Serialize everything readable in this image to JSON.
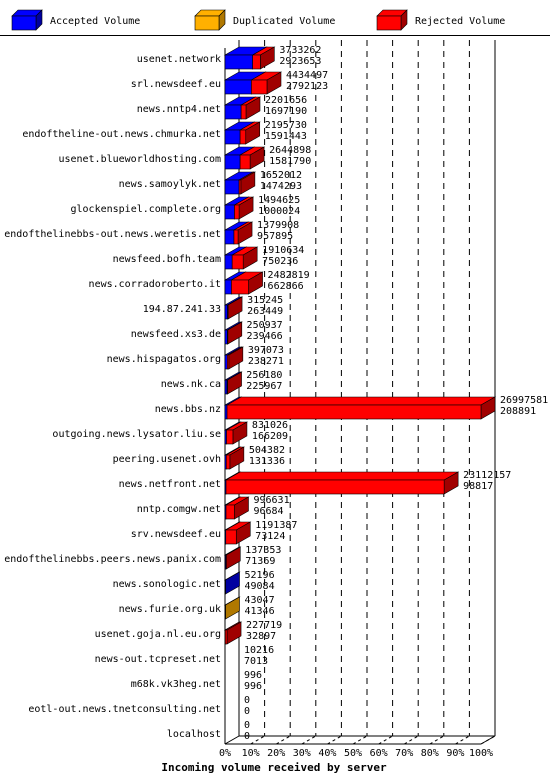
{
  "chart_data": {
    "type": "bar",
    "orientation": "horizontal",
    "style": "3d-stacked",
    "xlabel": "Incoming volume received by server",
    "xlim": [
      0,
      100
    ],
    "x_ticks": [
      "0%",
      "10%",
      "20%",
      "30%",
      "40%",
      "50%",
      "60%",
      "70%",
      "80%",
      "90%",
      "100%"
    ],
    "grid": true,
    "legend_position": "top",
    "legend": [
      {
        "name": "Accepted Volume",
        "color": "#0000ff"
      },
      {
        "name": "Duplicated Volume",
        "color": "#ffb000"
      },
      {
        "name": "Rejected Volume",
        "color": "#ff0000"
      }
    ],
    "categories": [
      "usenet.network",
      "srl.newsdeef.eu",
      "news.nntp4.net",
      "endoftheline-out.news.chmurka.net",
      "usenet.blueworldhosting.com",
      "news.samoylyk.net",
      "glockenspiel.complete.org",
      "endofthelinebbs-out.news.weretis.net",
      "newsfeed.bofh.team",
      "news.corradoroberto.it",
      "194.87.241.33",
      "newsfeed.xs3.de",
      "news.hispagatos.org",
      "news.nk.ca",
      "news.bbs.nz",
      "outgoing.news.lysator.liu.se",
      "peering.usenet.ovh",
      "news.netfront.net",
      "nntp.comgw.net",
      "srv.newsdeef.eu",
      "endofthelinebbs.peers.news.panix.com",
      "news.sonologic.net",
      "news.furie.org.uk",
      "usenet.goja.nl.eu.org",
      "news-out.tcpreset.net",
      "m68k.vk3heg.net",
      "eotl-out.news.tnetconsulting.net",
      "localhost"
    ],
    "total_labels": [
      "3733262",
      "4434497",
      "2201656",
      "2195730",
      "2644898",
      "1652012",
      "1494625",
      "1379908",
      "1910634",
      "2482819",
      "315245",
      "250937",
      "397073",
      "256180",
      "26997581",
      "831026",
      "504382",
      "23112157",
      "996631",
      "1191387",
      "137353",
      "52196",
      "43047",
      "227719",
      "10216",
      "996",
      "0",
      "0"
    ],
    "accepted_labels": [
      "2923653",
      "2792123",
      "1697190",
      "1591443",
      "1581790",
      "1474293",
      "1000024",
      "957895",
      "750236",
      "662866",
      "263449",
      "239466",
      "238271",
      "225967",
      "208891",
      "166209",
      "131336",
      "98817",
      "96684",
      "73124",
      "71369",
      "49084",
      "41346",
      "32897",
      "7013",
      "996",
      "0",
      "0"
    ],
    "series": [
      {
        "name": "Accepted Volume",
        "values": [
          10.8,
          10.3,
          6.3,
          5.9,
          5.9,
          5.5,
          3.7,
          3.5,
          2.8,
          2.5,
          1.0,
          0.9,
          0.9,
          0.8,
          0.8,
          0.6,
          0.5,
          0.4,
          0.4,
          0.3,
          0.3,
          0.2,
          0.0,
          0.1,
          0.0,
          0.0,
          0,
          0
        ]
      },
      {
        "name": "Duplicated Volume",
        "values": [
          0,
          0,
          0,
          0,
          0,
          0,
          0,
          0,
          0,
          0,
          0,
          0,
          0,
          0,
          0,
          0,
          0,
          0,
          0,
          0,
          0,
          0,
          0.2,
          0,
          0,
          0,
          0,
          0
        ]
      },
      {
        "name": "Rejected Volume",
        "values": [
          3.0,
          6.1,
          1.9,
          2.2,
          3.9,
          0.7,
          1.8,
          1.6,
          4.3,
          6.7,
          0.2,
          0.1,
          0.6,
          0.1,
          99.2,
          2.5,
          1.4,
          85.2,
          3.3,
          4.1,
          0.2,
          0.0,
          0.0,
          0.7,
          0.0,
          0.0,
          0,
          0
        ]
      }
    ]
  }
}
